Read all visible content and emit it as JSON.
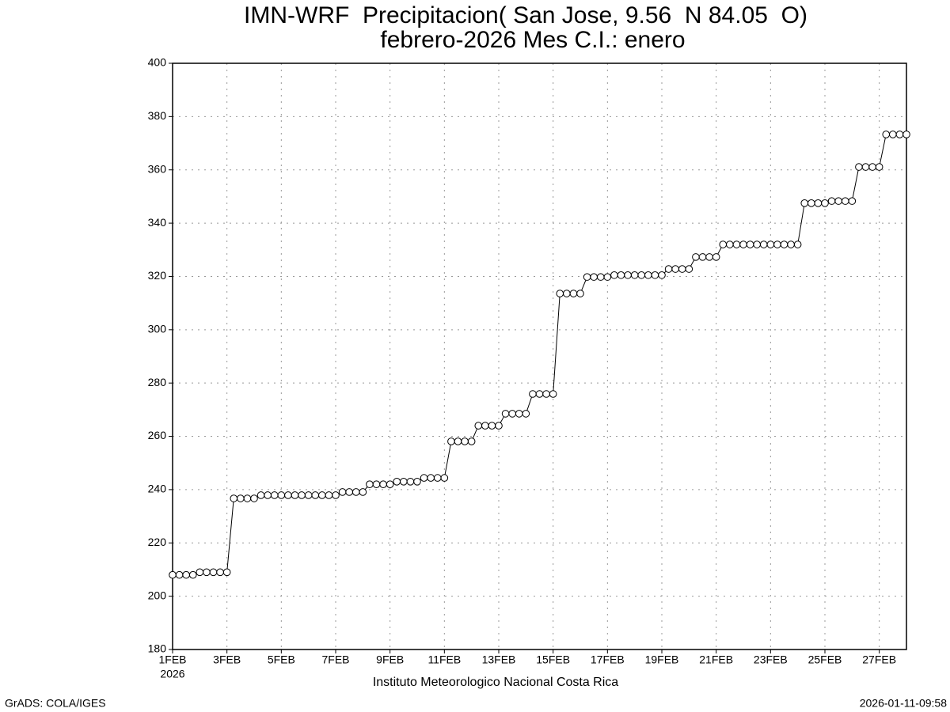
{
  "chart_data": {
    "type": "line",
    "title": "IMN-WRF  Precipitacion( San Jose, 9.56  N 84.05  O)",
    "subtitle": "febrero-2026 Mes C.I.: enero",
    "x_year_label": "2026",
    "caption": "Instituto Meteorologico Nacional Costa Rica",
    "footer_left": "GrADS: COLA/IGES",
    "footer_right": "2026-01-11-09:58",
    "grid": true,
    "color": "#000000",
    "xlim": [
      0,
      27
    ],
    "xticks": [
      {
        "value": 0,
        "label": "1FEB"
      },
      {
        "value": 2,
        "label": "3FEB"
      },
      {
        "value": 4,
        "label": "5FEB"
      },
      {
        "value": 6,
        "label": "7FEB"
      },
      {
        "value": 8,
        "label": "9FEB"
      },
      {
        "value": 10,
        "label": "11FEB"
      },
      {
        "value": 12,
        "label": "13FEB"
      },
      {
        "value": 14,
        "label": "15FEB"
      },
      {
        "value": 16,
        "label": "17FEB"
      },
      {
        "value": 18,
        "label": "19FEB"
      },
      {
        "value": 20,
        "label": "21FEB"
      },
      {
        "value": 22,
        "label": "23FEB"
      },
      {
        "value": 24,
        "label": "25FEB"
      },
      {
        "value": 26,
        "label": "27FEB"
      }
    ],
    "ylim": [
      180,
      400
    ],
    "yticks": [
      180,
      200,
      220,
      240,
      260,
      280,
      300,
      320,
      340,
      360,
      380,
      400
    ],
    "x": [
      0,
      0.25,
      0.5,
      0.75,
      1,
      1.25,
      1.5,
      1.75,
      2,
      2.25,
      2.5,
      2.75,
      3,
      3.25,
      3.5,
      3.75,
      4,
      4.25,
      4.5,
      4.75,
      5,
      5.25,
      5.5,
      5.75,
      6,
      6.25,
      6.5,
      6.75,
      7,
      7.25,
      7.5,
      7.75,
      8,
      8.25,
      8.5,
      8.75,
      9,
      9.25,
      9.5,
      9.75,
      10,
      10.25,
      10.5,
      10.75,
      11,
      11.25,
      11.5,
      11.75,
      12,
      12.25,
      12.5,
      12.75,
      13,
      13.25,
      13.5,
      13.75,
      14,
      14.25,
      14.5,
      14.75,
      15,
      15.25,
      15.5,
      15.75,
      16,
      16.25,
      16.5,
      16.75,
      17,
      17.25,
      17.5,
      17.75,
      18,
      18.25,
      18.5,
      18.75,
      19,
      19.25,
      19.5,
      19.75,
      20,
      20.25,
      20.5,
      20.75,
      21,
      21.25,
      21.5,
      21.75,
      22,
      22.25,
      22.5,
      22.75,
      23,
      23.25,
      23.5,
      23.75,
      24,
      24.25,
      24.5,
      24.75,
      25,
      25.25,
      25.5,
      25.75,
      26,
      26.25,
      26.5,
      26.75,
      27
    ],
    "values": [
      208,
      208,
      208,
      208,
      209,
      209,
      209,
      209,
      209,
      236.7,
      236.7,
      236.7,
      236.7,
      237.9,
      237.9,
      237.9,
      237.9,
      237.9,
      237.9,
      237.9,
      237.9,
      237.9,
      237.9,
      237.9,
      237.9,
      239.1,
      239.1,
      239.1,
      239.1,
      242,
      242,
      242,
      242,
      243,
      243,
      243,
      243,
      244.4,
      244.4,
      244.4,
      244.4,
      258.1,
      258.1,
      258.1,
      258.1,
      264,
      264,
      264,
      264,
      268.5,
      268.5,
      268.5,
      268.5,
      275.9,
      275.9,
      275.9,
      275.9,
      313.6,
      313.6,
      313.6,
      313.6,
      319.8,
      319.8,
      319.8,
      319.8,
      320.5,
      320.5,
      320.5,
      320.5,
      320.5,
      320.5,
      320.5,
      320.5,
      322.8,
      322.8,
      322.8,
      322.8,
      327.3,
      327.3,
      327.3,
      327.3,
      332,
      332,
      332,
      332,
      332,
      332,
      332,
      332,
      332,
      332,
      332,
      332,
      347.5,
      347.5,
      347.5,
      347.5,
      348.3,
      348.3,
      348.3,
      348.3,
      361.1,
      361.1,
      361.1,
      361.1,
      373.3,
      373.3,
      373.3,
      373.3
    ]
  }
}
